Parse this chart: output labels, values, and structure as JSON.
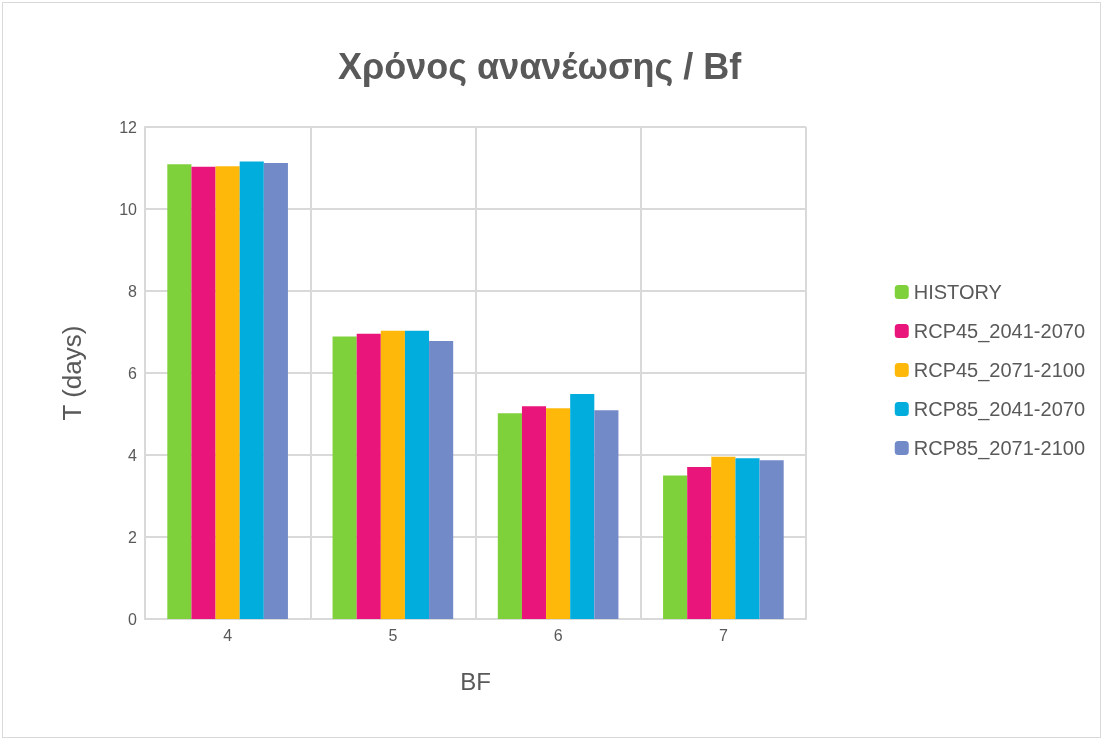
{
  "chart_data": {
    "type": "bar",
    "title": "Χρόνος ανανέωσης / Bf",
    "xlabel": "BF",
    "ylabel": "T (days)",
    "categories": [
      "4",
      "5",
      "6",
      "7"
    ],
    "series": [
      {
        "name": "HISTORY",
        "color": "#7fd13b",
        "values": [
          11.09,
          6.89,
          5.02,
          3.5
        ]
      },
      {
        "name": "RCP45_2041-2070",
        "color": "#ea157a",
        "values": [
          11.03,
          6.96,
          5.19,
          3.71
        ]
      },
      {
        "name": "RCP45_2071-2100",
        "color": "#feb80a",
        "values": [
          11.04,
          7.03,
          5.14,
          3.96
        ]
      },
      {
        "name": "RCP85_2041-2070",
        "color": "#00addc",
        "values": [
          11.16,
          7.03,
          5.49,
          3.92
        ]
      },
      {
        "name": "RCP85_2071-2100",
        "color": "#738ac8",
        "values": [
          11.12,
          6.78,
          5.09,
          3.87
        ]
      }
    ],
    "ylim": [
      0,
      12
    ],
    "yticks": [
      0,
      2,
      4,
      6,
      8,
      10,
      12
    ],
    "grid": true,
    "legend": "right"
  }
}
